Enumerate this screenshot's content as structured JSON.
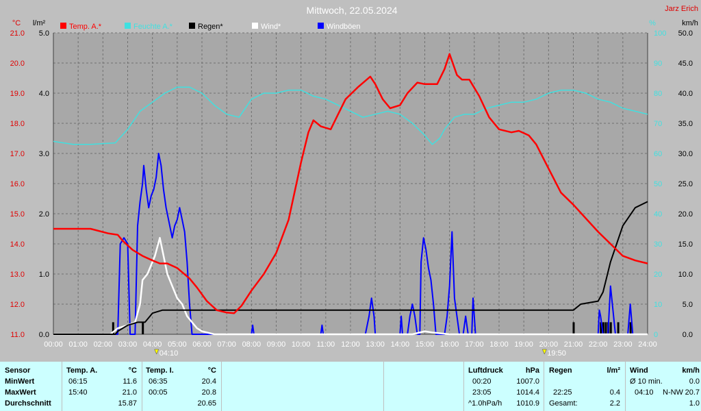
{
  "chart_data": {
    "type": "line",
    "title": "Mittwoch, 22.05.2024",
    "author": "Jarz Erich",
    "x_ticks": [
      "00:00",
      "01:00",
      "02:00",
      "03:00",
      "04:00",
      "05:00",
      "06:00",
      "07:00",
      "08:00",
      "09:00",
      "10:00",
      "11:00",
      "12:00",
      "13:00",
      "14:00",
      "15:00",
      "16:00",
      "17:00",
      "18:00",
      "19:00",
      "20:00",
      "21:00",
      "22:00",
      "23:00",
      "24:00"
    ],
    "axes": {
      "temp": {
        "unit": "°C",
        "range": [
          11,
          21
        ],
        "ticks": [
          "11.0",
          "12.0",
          "13.0",
          "14.0",
          "15.0",
          "16.0",
          "17.0",
          "18.0",
          "19.0",
          "20.0",
          "21.0"
        ]
      },
      "rain": {
        "unit": "l/m²",
        "range": [
          0,
          5
        ],
        "ticks": [
          "0.0",
          "1.0",
          "2.0",
          "3.0",
          "4.0",
          "5.0"
        ]
      },
      "humidity": {
        "unit": "%",
        "range": [
          0,
          100
        ],
        "ticks": [
          "0",
          "10",
          "20",
          "30",
          "40",
          "50",
          "60",
          "70",
          "80",
          "90",
          "100"
        ]
      },
      "wind": {
        "unit": "km/h",
        "range": [
          0,
          50
        ],
        "ticks": [
          "0.0",
          "5.0",
          "10.0",
          "15.0",
          "20.0",
          "25.0",
          "30.0",
          "35.0",
          "40.0",
          "45.0",
          "50.0"
        ]
      }
    },
    "markers": [
      {
        "time": "04:10",
        "label": "04:10"
      },
      {
        "time": "19:50",
        "label": "19:50"
      }
    ],
    "series": [
      {
        "name": "Temp. A.*",
        "color": "#ff0000",
        "axis": "temp",
        "points": [
          [
            0,
            14.5
          ],
          [
            1.5,
            14.5
          ],
          [
            2.2,
            14.35
          ],
          [
            2.6,
            14.3
          ],
          [
            2.8,
            14.1
          ],
          [
            3.2,
            13.8
          ],
          [
            3.6,
            13.6
          ],
          [
            4.0,
            13.45
          ],
          [
            4.3,
            13.35
          ],
          [
            4.6,
            13.35
          ],
          [
            5.0,
            13.2
          ],
          [
            5.5,
            12.85
          ],
          [
            5.8,
            12.55
          ],
          [
            6.2,
            12.1
          ],
          [
            6.6,
            11.8
          ],
          [
            7.0,
            11.72
          ],
          [
            7.3,
            11.7
          ],
          [
            7.6,
            11.95
          ],
          [
            8.0,
            12.45
          ],
          [
            8.5,
            13.0
          ],
          [
            9.0,
            13.7
          ],
          [
            9.5,
            14.8
          ],
          [
            10.0,
            16.7
          ],
          [
            10.3,
            17.7
          ],
          [
            10.5,
            18.1
          ],
          [
            10.8,
            17.9
          ],
          [
            11.2,
            17.8
          ],
          [
            11.5,
            18.3
          ],
          [
            11.8,
            18.8
          ],
          [
            12.3,
            19.2
          ],
          [
            12.8,
            19.55
          ],
          [
            13.0,
            19.3
          ],
          [
            13.3,
            18.8
          ],
          [
            13.6,
            18.5
          ],
          [
            14.0,
            18.6
          ],
          [
            14.3,
            19.0
          ],
          [
            14.7,
            19.35
          ],
          [
            15.0,
            19.3
          ],
          [
            15.5,
            19.3
          ],
          [
            15.8,
            19.8
          ],
          [
            16.0,
            20.3
          ],
          [
            16.3,
            19.6
          ],
          [
            16.5,
            19.45
          ],
          [
            16.8,
            19.45
          ],
          [
            17.2,
            18.9
          ],
          [
            17.6,
            18.2
          ],
          [
            18.0,
            17.8
          ],
          [
            18.5,
            17.7
          ],
          [
            18.8,
            17.75
          ],
          [
            19.2,
            17.6
          ],
          [
            19.5,
            17.3
          ],
          [
            20.0,
            16.5
          ],
          [
            20.5,
            15.7
          ],
          [
            21.0,
            15.3
          ],
          [
            21.5,
            14.85
          ],
          [
            22.0,
            14.4
          ],
          [
            22.5,
            14.0
          ],
          [
            23.0,
            13.6
          ],
          [
            23.5,
            13.45
          ],
          [
            24.0,
            13.35
          ]
        ]
      },
      {
        "name": "Feuchte A.*",
        "color": "#40e0e0",
        "axis": "humidity",
        "points": [
          [
            0,
            64
          ],
          [
            0.8,
            63
          ],
          [
            1.5,
            63
          ],
          [
            2.5,
            63.5
          ],
          [
            3.0,
            68
          ],
          [
            3.5,
            74
          ],
          [
            4.0,
            77
          ],
          [
            4.5,
            80
          ],
          [
            5.0,
            82
          ],
          [
            5.5,
            82
          ],
          [
            6.0,
            80
          ],
          [
            6.5,
            76
          ],
          [
            7.0,
            73
          ],
          [
            7.5,
            72
          ],
          [
            8.0,
            78
          ],
          [
            8.5,
            80
          ],
          [
            9.0,
            80
          ],
          [
            9.5,
            81
          ],
          [
            10.0,
            81
          ],
          [
            10.5,
            79
          ],
          [
            11.0,
            78
          ],
          [
            11.5,
            76
          ],
          [
            12.0,
            74
          ],
          [
            12.5,
            72
          ],
          [
            13.0,
            73
          ],
          [
            13.5,
            74
          ],
          [
            14.0,
            73
          ],
          [
            14.5,
            70
          ],
          [
            15.0,
            66
          ],
          [
            15.3,
            63
          ],
          [
            15.6,
            65
          ],
          [
            15.8,
            68
          ],
          [
            16.2,
            72
          ],
          [
            16.6,
            73
          ],
          [
            17.0,
            73
          ],
          [
            17.5,
            75
          ],
          [
            18.0,
            76
          ],
          [
            18.5,
            77
          ],
          [
            19.0,
            77
          ],
          [
            19.5,
            78
          ],
          [
            20.0,
            80
          ],
          [
            20.5,
            81
          ],
          [
            21.0,
            81
          ],
          [
            21.5,
            80
          ],
          [
            22.0,
            78
          ],
          [
            22.5,
            77
          ],
          [
            23.0,
            75
          ],
          [
            23.5,
            74
          ],
          [
            24.0,
            73
          ]
        ]
      },
      {
        "name": "Regen*",
        "color": "#000000",
        "axis": "rain",
        "points": [
          [
            0,
            0
          ],
          [
            2.5,
            0
          ],
          [
            2.6,
            0.05
          ],
          [
            3.0,
            0.15
          ],
          [
            3.4,
            0.2
          ],
          [
            3.7,
            0.2
          ],
          [
            4.0,
            0.35
          ],
          [
            4.4,
            0.4
          ],
          [
            5.0,
            0.4
          ],
          [
            6.0,
            0.4
          ],
          [
            10.0,
            0.4
          ],
          [
            15.0,
            0.4
          ],
          [
            20.0,
            0.4
          ],
          [
            21.0,
            0.4
          ],
          [
            21.3,
            0.5
          ],
          [
            22.0,
            0.55
          ],
          [
            22.2,
            0.7
          ],
          [
            22.5,
            1.2
          ],
          [
            23.0,
            1.8
          ],
          [
            23.5,
            2.1
          ],
          [
            24.0,
            2.2
          ]
        ],
        "bars": [
          [
            2.4,
            0.2
          ],
          [
            3.6,
            0.2
          ],
          [
            21.0,
            0.2
          ],
          [
            22.1,
            0.2
          ],
          [
            22.2,
            0.2
          ],
          [
            22.3,
            0.2
          ],
          [
            22.4,
            0.2
          ],
          [
            22.5,
            0.2
          ],
          [
            22.8,
            0.2
          ],
          [
            23.3,
            0.2
          ]
        ]
      },
      {
        "name": "Wind*",
        "color": "#ffffff",
        "axis": "wind",
        "points": [
          [
            0,
            0
          ],
          [
            2.3,
            0
          ],
          [
            2.6,
            1
          ],
          [
            3.0,
            1.5
          ],
          [
            3.3,
            2
          ],
          [
            3.5,
            5
          ],
          [
            3.6,
            9
          ],
          [
            3.8,
            10
          ],
          [
            4.0,
            12
          ],
          [
            4.1,
            13
          ],
          [
            4.3,
            16
          ],
          [
            4.4,
            14
          ],
          [
            4.6,
            10
          ],
          [
            4.8,
            8
          ],
          [
            5.0,
            6
          ],
          [
            5.2,
            5
          ],
          [
            5.4,
            3
          ],
          [
            5.6,
            2
          ],
          [
            5.8,
            1
          ],
          [
            6.0,
            0.5
          ],
          [
            6.5,
            0
          ],
          [
            14.5,
            0
          ],
          [
            15.0,
            0.5
          ],
          [
            15.3,
            0.3
          ],
          [
            16.0,
            0
          ],
          [
            24,
            0
          ]
        ]
      },
      {
        "name": "Windböen",
        "color": "#0000ff",
        "axis": "wind",
        "points": [
          [
            0,
            0
          ],
          [
            2.6,
            0
          ],
          [
            2.7,
            15
          ],
          [
            2.85,
            16
          ],
          [
            3.0,
            15
          ],
          [
            3.1,
            0
          ],
          [
            3.3,
            0
          ],
          [
            3.4,
            18
          ],
          [
            3.5,
            22
          ],
          [
            3.6,
            25
          ],
          [
            3.65,
            28
          ],
          [
            3.75,
            24
          ],
          [
            3.85,
            21
          ],
          [
            3.95,
            23
          ],
          [
            4.05,
            24
          ],
          [
            4.15,
            26
          ],
          [
            4.25,
            30
          ],
          [
            4.35,
            28
          ],
          [
            4.45,
            24
          ],
          [
            4.55,
            21
          ],
          [
            4.7,
            18
          ],
          [
            4.8,
            16
          ],
          [
            4.9,
            18
          ],
          [
            5.0,
            19
          ],
          [
            5.1,
            21
          ],
          [
            5.2,
            19
          ],
          [
            5.3,
            17
          ],
          [
            5.4,
            12
          ],
          [
            5.5,
            5
          ],
          [
            5.6,
            0
          ],
          [
            8.0,
            0
          ],
          [
            8.05,
            1.5
          ],
          [
            8.1,
            0
          ],
          [
            10.8,
            0
          ],
          [
            10.85,
            1.5
          ],
          [
            10.9,
            0
          ],
          [
            12.6,
            0
          ],
          [
            12.75,
            3
          ],
          [
            12.85,
            6
          ],
          [
            12.95,
            3
          ],
          [
            13.0,
            0
          ],
          [
            14.0,
            0
          ],
          [
            14.05,
            3
          ],
          [
            14.1,
            0
          ],
          [
            14.3,
            0
          ],
          [
            14.4,
            3
          ],
          [
            14.5,
            5
          ],
          [
            14.6,
            3
          ],
          [
            14.7,
            0
          ],
          [
            14.8,
            0
          ],
          [
            14.85,
            12
          ],
          [
            14.95,
            16
          ],
          [
            15.05,
            14
          ],
          [
            15.15,
            11
          ],
          [
            15.25,
            9
          ],
          [
            15.35,
            5
          ],
          [
            15.45,
            0
          ],
          [
            15.8,
            0
          ],
          [
            15.9,
            3
          ],
          [
            16.0,
            8
          ],
          [
            16.1,
            17
          ],
          [
            16.2,
            6
          ],
          [
            16.3,
            3
          ],
          [
            16.4,
            0
          ],
          [
            16.55,
            0
          ],
          [
            16.65,
            3
          ],
          [
            16.75,
            0
          ],
          [
            16.9,
            0
          ],
          [
            16.95,
            6
          ],
          [
            17.0,
            3
          ],
          [
            17.05,
            0
          ],
          [
            22.0,
            0
          ],
          [
            22.05,
            4
          ],
          [
            22.1,
            3
          ],
          [
            22.2,
            0
          ],
          [
            22.4,
            0
          ],
          [
            22.5,
            8
          ],
          [
            22.6,
            4
          ],
          [
            22.7,
            0
          ],
          [
            23.2,
            0
          ],
          [
            23.3,
            5
          ],
          [
            23.4,
            0
          ],
          [
            24,
            0
          ]
        ]
      }
    ]
  },
  "legend": [
    {
      "label": "Temp. A.*",
      "color": "#ff0000",
      "text_color": "#ff0000"
    },
    {
      "label": "Feuchte A.*",
      "color": "#40e0e0",
      "text_color": "#40e0e0"
    },
    {
      "label": "Regen*",
      "color": "#000000",
      "text_color": "#000000"
    },
    {
      "label": "Wind*",
      "color": "#ffffff",
      "text_color": "#ffffff"
    },
    {
      "label": "Windböen",
      "color": "#0000ff",
      "text_color": "#ffffff"
    }
  ],
  "table": {
    "row_labels": {
      "header": "Sensor",
      "min": "MinWert",
      "max": "MaxWert",
      "avg": "Durchschnitt"
    },
    "temp_a": {
      "title": "Temp. A.",
      "unit": "°C",
      "min_time": "06:15",
      "min_val": "11.6",
      "max_time": "15:40",
      "max_val": "21.0",
      "avg": "15.87"
    },
    "temp_i": {
      "title": "Temp. I.",
      "unit": "°C",
      "min_time": "06:35",
      "min_val": "20.4",
      "max_time": "00:05",
      "max_val": "20.8",
      "avg": "20.65"
    },
    "pressure": {
      "title": "Luftdruck",
      "unit": "hPa",
      "min_time": "00:20",
      "min_val": "1007.0",
      "max_time": "23:05",
      "max_val": "1014.4",
      "trend": "^1.0hPa/h",
      "avg": "1010.9"
    },
    "rain": {
      "title": "Regen",
      "unit": "l/m²",
      "max_time": "22:25",
      "max_val": "0.4",
      "total_label": "Gesamt:",
      "total": "2.2"
    },
    "wind": {
      "title": "Wind",
      "unit": "km/h",
      "avg_label": "Ø 10 min.",
      "avg_val": "0.0",
      "max_time": "04:10",
      "max_dir": "N-NW",
      "max_val": "20.7",
      "last_val": "1.0"
    }
  }
}
